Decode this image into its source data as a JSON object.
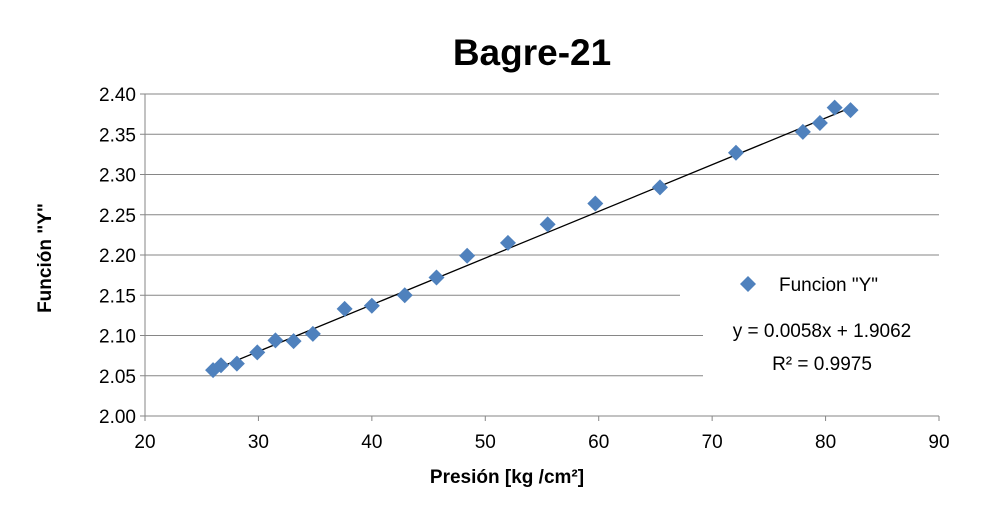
{
  "chart_data": {
    "type": "scatter",
    "title": "Bagre-21",
    "xlabel": "Presión [kg /cm²]",
    "ylabel": "Función \"Y\"",
    "xlim": [
      20,
      90
    ],
    "ylim": [
      2.0,
      2.4
    ],
    "x_ticks": [
      "20",
      "30",
      "40",
      "50",
      "60",
      "70",
      "80",
      "90"
    ],
    "y_ticks": [
      "2.00",
      "2.05",
      "2.10",
      "2.15",
      "2.20",
      "2.25",
      "2.30",
      "2.35",
      "2.40"
    ],
    "grid": "horizontal major gridlines",
    "legend_position": "right",
    "series": [
      {
        "name": "Funcion \"Y\"",
        "color": "#4F81BD",
        "marker": "diamond",
        "points": [
          {
            "x": 26.0,
            "y": 2.057
          },
          {
            "x": 26.7,
            "y": 2.063
          },
          {
            "x": 28.1,
            "y": 2.065
          },
          {
            "x": 29.9,
            "y": 2.079
          },
          {
            "x": 31.5,
            "y": 2.094
          },
          {
            "x": 33.1,
            "y": 2.093
          },
          {
            "x": 34.8,
            "y": 2.102
          },
          {
            "x": 37.6,
            "y": 2.133
          },
          {
            "x": 40.0,
            "y": 2.137
          },
          {
            "x": 42.9,
            "y": 2.15
          },
          {
            "x": 45.7,
            "y": 2.172
          },
          {
            "x": 48.4,
            "y": 2.199
          },
          {
            "x": 52.0,
            "y": 2.215
          },
          {
            "x": 55.5,
            "y": 2.238
          },
          {
            "x": 59.7,
            "y": 2.264
          },
          {
            "x": 65.4,
            "y": 2.284
          },
          {
            "x": 72.1,
            "y": 2.327
          },
          {
            "x": 78.0,
            "y": 2.353
          },
          {
            "x": 79.5,
            "y": 2.364
          },
          {
            "x": 80.8,
            "y": 2.383
          },
          {
            "x": 82.2,
            "y": 2.38
          }
        ]
      }
    ],
    "trendline": {
      "slope": 0.0058,
      "intercept": 1.9062,
      "x_range": [
        26.0,
        82.2
      ],
      "color": "#000000",
      "equation": "y = 0.0058x + 1.9062",
      "r_squared": "R² = 0.9975"
    }
  }
}
